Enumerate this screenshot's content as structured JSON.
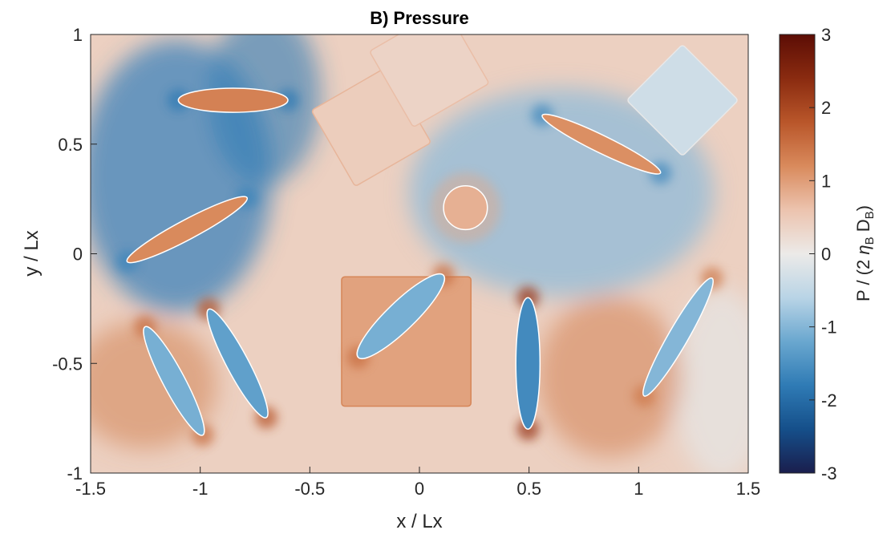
{
  "chart_data": {
    "type": "heatmap",
    "title": "B) Pressure",
    "xlabel": "x / Lx",
    "ylabel": "y / Lx",
    "xlim": [
      -1.5,
      1.5
    ],
    "ylim": [
      -1,
      1
    ],
    "x_ticks": [
      "-1.5",
      "-1",
      "-0.5",
      "0",
      "0.5",
      "1",
      "1.5"
    ],
    "x_tick_values": [
      -1.5,
      -1,
      -0.5,
      0,
      0.5,
      1,
      1.5
    ],
    "y_ticks": [
      "-1",
      "-0.5",
      "0",
      "0.5",
      "1"
    ],
    "y_tick_values": [
      -1,
      -0.5,
      0,
      0.5,
      1
    ],
    "colorbar": {
      "label_main": "P / (2 ",
      "label_eta": "η",
      "label_sub1": "B",
      "label_mid": " D",
      "label_sub2": "B",
      "label_end": ")",
      "clim": [
        -3,
        3
      ],
      "ticks": [
        "3",
        "2",
        "1",
        "0",
        "-1",
        "-2",
        "-3"
      ],
      "tick_values": [
        3,
        2,
        1,
        0,
        -1,
        -2,
        -3
      ],
      "colormap": [
        "#1a1e4d",
        "#154f8a",
        "#2f7bb5",
        "#6aa7cf",
        "#b9d4e6",
        "#eceae8",
        "#ecc3ae",
        "#d98a5c",
        "#b9562a",
        "#8a2b10",
        "#5c0d05"
      ]
    },
    "background_field_p": 0.4,
    "inclusions": [
      {
        "shape": "square",
        "cx": -0.06,
        "cy": -0.4,
        "half": 0.295,
        "angle": 0,
        "p": 0.95
      },
      {
        "shape": "square",
        "cx": -0.22,
        "cy": 0.58,
        "half": 0.2,
        "angle": 30,
        "p": 0.45
      },
      {
        "shape": "square",
        "cx": 0.045,
        "cy": 0.85,
        "half": 0.2,
        "angle": 30,
        "p": 0.35
      },
      {
        "shape": "square",
        "cx": 1.2,
        "cy": 0.7,
        "half": 0.18,
        "angle": 45,
        "p": -0.35
      },
      {
        "shape": "circle",
        "cx": 0.21,
        "cy": 0.21,
        "r": 0.1,
        "p": 0.8
      },
      {
        "shape": "ellipse",
        "cx": -0.85,
        "cy": 0.7,
        "a": 0.25,
        "b": 0.055,
        "angle": 0,
        "p": 1.3
      },
      {
        "shape": "ellipse",
        "cx": -1.06,
        "cy": 0.11,
        "a": 0.31,
        "b": 0.045,
        "angle": 28,
        "p": 1.2
      },
      {
        "shape": "ellipse",
        "cx": 0.83,
        "cy": 0.5,
        "a": 0.3,
        "b": 0.04,
        "angle": -26,
        "p": 1.15
      },
      {
        "shape": "ellipse",
        "cx": -0.085,
        "cy": -0.285,
        "a": 0.27,
        "b": 0.065,
        "angle": 44,
        "p": -1.1
      },
      {
        "shape": "ellipse",
        "cx": 0.495,
        "cy": -0.5,
        "a": 0.3,
        "b": 0.055,
        "angle": 90,
        "p": -1.6
      },
      {
        "shape": "ellipse",
        "cx": -1.12,
        "cy": -0.58,
        "a": 0.28,
        "b": 0.05,
        "angle": -62,
        "p": -1.1
      },
      {
        "shape": "ellipse",
        "cx": -0.83,
        "cy": -0.5,
        "a": 0.28,
        "b": 0.05,
        "angle": -62,
        "p": -1.3
      },
      {
        "shape": "ellipse",
        "cx": 1.18,
        "cy": -0.38,
        "a": 0.31,
        "b": 0.045,
        "angle": 60,
        "p": -1.0
      }
    ]
  }
}
